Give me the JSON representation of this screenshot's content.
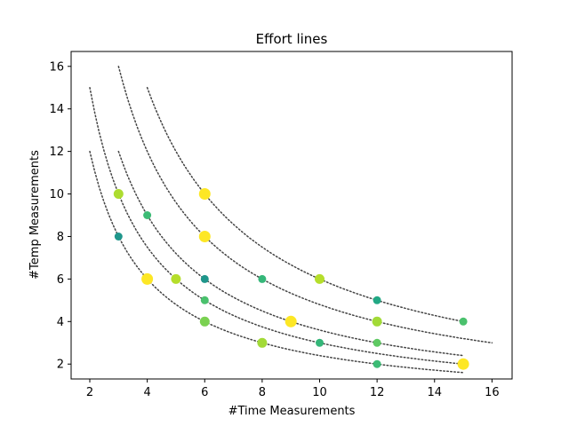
{
  "chart_data": {
    "type": "scatter",
    "title": "Effort lines",
    "xlabel": "#Time Measurements",
    "ylabel": "#Temp Measurements",
    "xlim": [
      1.35,
      16.7
    ],
    "ylim": [
      1.3,
      16.7
    ],
    "x_ticks": [
      "2",
      "4",
      "6",
      "8",
      "10",
      "12",
      "14",
      "16"
    ],
    "y_ticks": [
      "2",
      "4",
      "6",
      "8",
      "10",
      "12",
      "14",
      "16"
    ],
    "grid": false,
    "effort_lines": [
      {
        "effort": 24,
        "x_range": [
          2,
          15
        ],
        "color": "#444444",
        "style": "dotted"
      },
      {
        "effort": 30,
        "x_range": [
          2,
          15
        ],
        "color": "#444444",
        "style": "dotted"
      },
      {
        "effort": 36,
        "x_range": [
          3,
          15
        ],
        "color": "#444444",
        "style": "dotted"
      },
      {
        "effort": 48,
        "x_range": [
          3,
          16
        ],
        "color": "#444444",
        "style": "dotted"
      },
      {
        "effort": 60,
        "x_range": [
          4,
          15
        ],
        "color": "#444444",
        "style": "dotted"
      }
    ],
    "points": [
      {
        "x": 3,
        "y": 8,
        "color": "#1f968b",
        "size": "small"
      },
      {
        "x": 3,
        "y": 10,
        "color": "#addc30",
        "size": "medium"
      },
      {
        "x": 4,
        "y": 6,
        "color": "#fde725",
        "size": "large"
      },
      {
        "x": 4,
        "y": 9,
        "color": "#3cbb75",
        "size": "small"
      },
      {
        "x": 5,
        "y": 6,
        "color": "#b5de2b",
        "size": "medium"
      },
      {
        "x": 6,
        "y": 4,
        "color": "#7ad151",
        "size": "medium"
      },
      {
        "x": 6,
        "y": 5,
        "color": "#4ac16d",
        "size": "small"
      },
      {
        "x": 6,
        "y": 6,
        "color": "#1f968b",
        "size": "small"
      },
      {
        "x": 6,
        "y": 8,
        "color": "#fde725",
        "size": "large"
      },
      {
        "x": 6,
        "y": 10,
        "color": "#fde725",
        "size": "large"
      },
      {
        "x": 8,
        "y": 3,
        "color": "#a2da37",
        "size": "medium"
      },
      {
        "x": 8,
        "y": 6,
        "color": "#35b779",
        "size": "small"
      },
      {
        "x": 9,
        "y": 4,
        "color": "#fde725",
        "size": "large"
      },
      {
        "x": 10,
        "y": 3,
        "color": "#35b779",
        "size": "small"
      },
      {
        "x": 10,
        "y": 6,
        "color": "#b5de2b",
        "size": "medium"
      },
      {
        "x": 12,
        "y": 2,
        "color": "#3cbb75",
        "size": "small"
      },
      {
        "x": 12,
        "y": 3,
        "color": "#5ec962",
        "size": "small"
      },
      {
        "x": 12,
        "y": 4,
        "color": "#a2da37",
        "size": "medium"
      },
      {
        "x": 12,
        "y": 5,
        "color": "#22a884",
        "size": "small"
      },
      {
        "x": 15,
        "y": 2,
        "color": "#fde725",
        "size": "large"
      },
      {
        "x": 15,
        "y": 4,
        "color": "#4ac16d",
        "size": "small"
      }
    ]
  }
}
